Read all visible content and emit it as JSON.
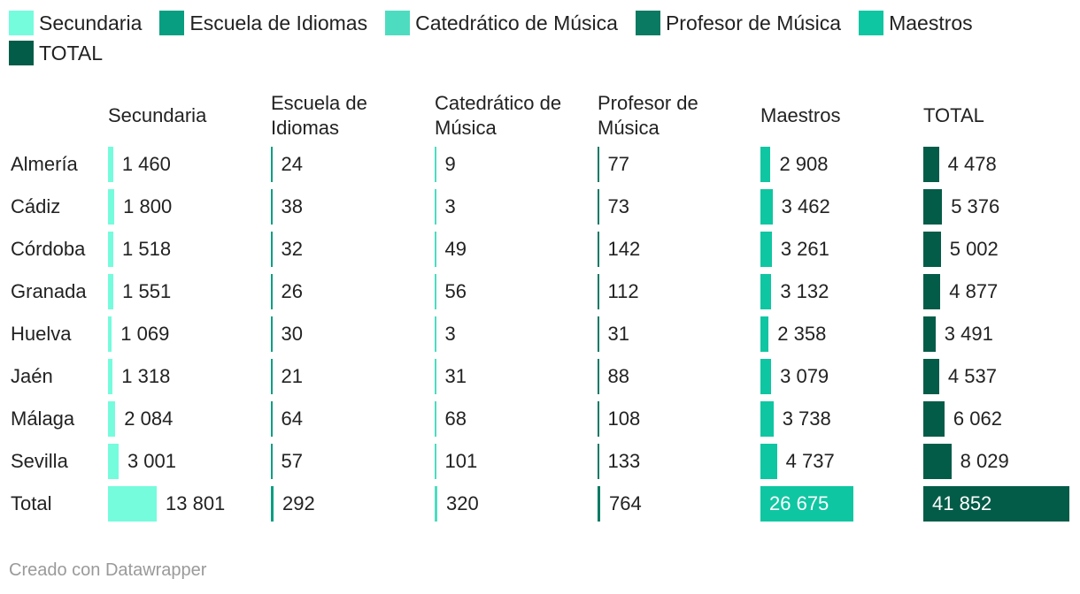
{
  "legend": [
    {
      "label": "Secundaria",
      "color": "#75fcdd"
    },
    {
      "label": "Escuela de Idiomas",
      "color": "#089e82"
    },
    {
      "label": "Catedrático de Música",
      "color": "#4ddcc0"
    },
    {
      "label": "Profesor de Música",
      "color": "#0a7a63"
    },
    {
      "label": "Maestros",
      "color": "#0fc6a2"
    },
    {
      "label": "TOTAL",
      "color": "#035c48"
    }
  ],
  "chart_data": {
    "type": "table",
    "columns": [
      "Secundaria",
      "Escuela de Idiomas",
      "Catedrático de Música",
      "Profesor de Música",
      "Maestros",
      "TOTAL"
    ],
    "rows": [
      {
        "label": "Almería",
        "values": [
          1460,
          24,
          9,
          77,
          2908,
          4478
        ],
        "display": [
          "1 460",
          "24",
          "9",
          "77",
          "2 908",
          "4 478"
        ]
      },
      {
        "label": "Cádiz",
        "values": [
          1800,
          38,
          3,
          73,
          3462,
          5376
        ],
        "display": [
          "1 800",
          "38",
          "3",
          "73",
          "3 462",
          "5 376"
        ]
      },
      {
        "label": "Córdoba",
        "values": [
          1518,
          32,
          49,
          142,
          3261,
          5002
        ],
        "display": [
          "1 518",
          "32",
          "49",
          "142",
          "3 261",
          "5 002"
        ]
      },
      {
        "label": "Granada",
        "values": [
          1551,
          26,
          56,
          112,
          3132,
          4877
        ],
        "display": [
          "1 551",
          "26",
          "56",
          "112",
          "3 132",
          "4 877"
        ]
      },
      {
        "label": "Huelva",
        "values": [
          1069,
          30,
          3,
          31,
          2358,
          3491
        ],
        "display": [
          "1 069",
          "30",
          "3",
          "31",
          "2 358",
          "3 491"
        ]
      },
      {
        "label": "Jaén",
        "values": [
          1318,
          21,
          31,
          88,
          3079,
          4537
        ],
        "display": [
          "1 318",
          "21",
          "31",
          "88",
          "3 079",
          "4 537"
        ]
      },
      {
        "label": "Málaga",
        "values": [
          2084,
          64,
          68,
          108,
          3738,
          6062
        ],
        "display": [
          "2 084",
          "64",
          "68",
          "108",
          "3 738",
          "6 062"
        ]
      },
      {
        "label": "Sevilla",
        "values": [
          3001,
          57,
          101,
          133,
          4737,
          8029
        ],
        "display": [
          "3 001",
          "57",
          "101",
          "133",
          "4 737",
          "8 029"
        ]
      },
      {
        "label": "Total",
        "values": [
          13801,
          292,
          320,
          764,
          26675,
          41852
        ],
        "display": [
          "13 801",
          "292",
          "320",
          "764",
          "26 675",
          "41 852"
        ]
      }
    ]
  },
  "footer": "Creado con Datawrapper"
}
